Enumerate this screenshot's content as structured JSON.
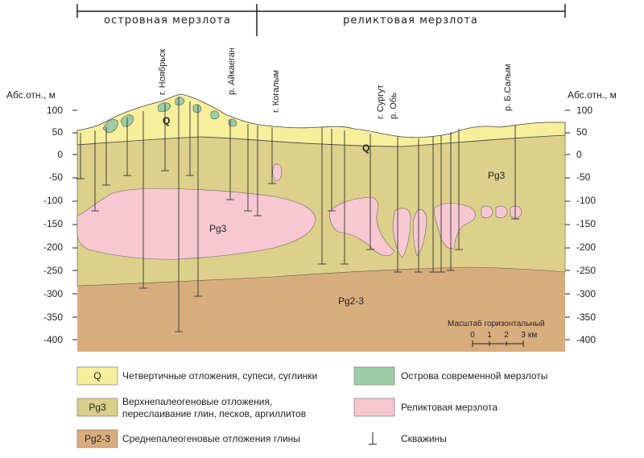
{
  "zones": {
    "left": "островная мерзлота",
    "right": "реликтовая мерзлота"
  },
  "axis": {
    "label_left": "Абс.отн., м",
    "label_right": "Абс.отн., м",
    "ticks": [
      "100",
      "50",
      "0",
      "-50",
      "-100",
      "-150",
      "-200",
      "-250",
      "-300",
      "-350",
      "-400"
    ]
  },
  "locations": [
    "г. Ноябрьск",
    "р. Айкаеган",
    "г. Когалым",
    "г. Сургут",
    "р. Обь",
    "р. Б.Салым"
  ],
  "units": {
    "q": "Q",
    "pg3_upper": "Pg3",
    "pg3_lens": "Pg3",
    "pg23": "Pg2-3"
  },
  "scale": {
    "title": "Масштаб горизонтальный",
    "ticks": [
      "0",
      "1",
      "2",
      "3"
    ],
    "unit": "км"
  },
  "legend": [
    {
      "code": "Q",
      "text": [
        "Четвертичные отложения, супеси, суглинки"
      ],
      "color": "#f7ef9c"
    },
    {
      "code": "",
      "text": [
        "Острова современной мерзлоты"
      ],
      "color": "#9dcda6"
    },
    {
      "code": "Pg3",
      "text": [
        "Верхнепалеогеновые отложения,",
        "переслаивание глин, песков, аргиллитов"
      ],
      "color": "#d9cf8a"
    },
    {
      "code": "",
      "text": [
        "Реликтовая мерзлота"
      ],
      "color": "#f7c8d2"
    },
    {
      "code": "Pg2-3",
      "text": [
        "Среднепалеогеновые отложения глины"
      ],
      "color": "#d8ad7e"
    },
    {
      "code": "",
      "text": [
        "Скважины"
      ],
      "color": ""
    }
  ],
  "colors": {
    "q": "#f7ef9c",
    "pg3": "#dcd08b",
    "pg23": "#d8ad7e",
    "relict": "#f7c8d2",
    "modern": "#9dcda6"
  }
}
